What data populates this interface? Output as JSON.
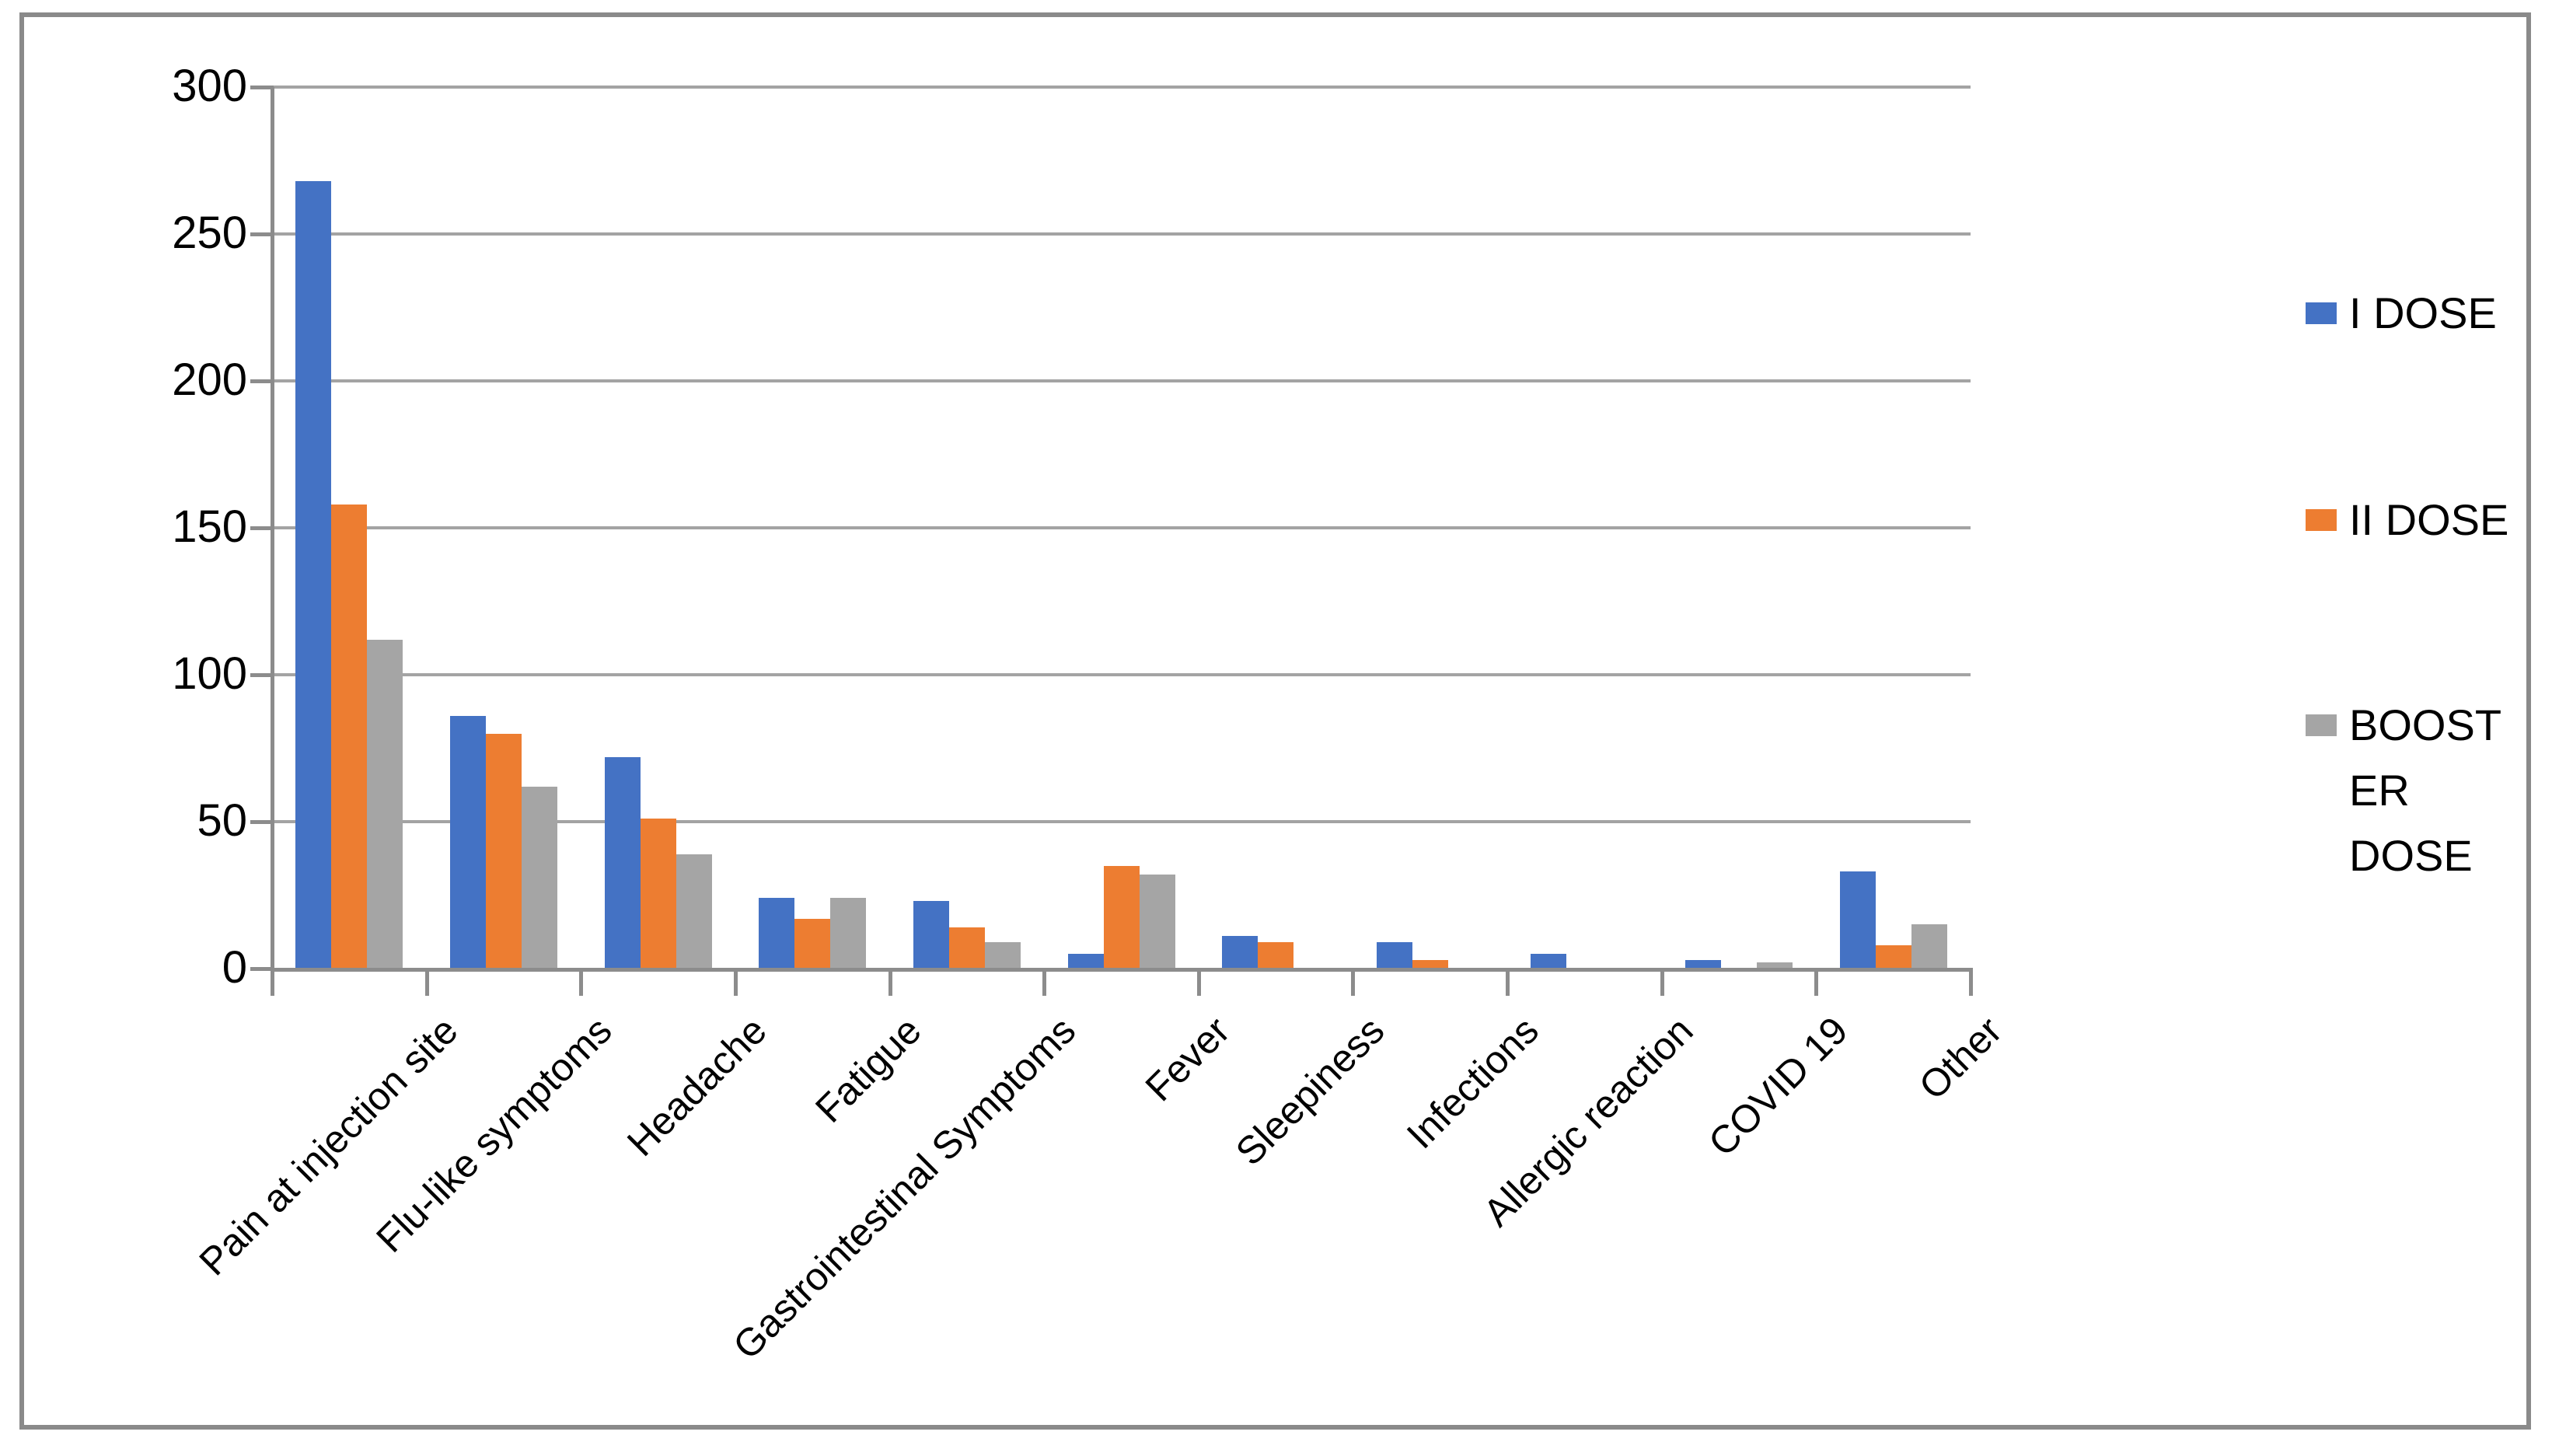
{
  "figure": {
    "background_color": "#FFFFFF",
    "border_color": "#8A8A8A",
    "gridline_color": "#A3A3A3",
    "axis_color": "#8C8C8C",
    "text_color": "#000000"
  },
  "legend": {
    "items": [
      {
        "label": "I DOSE",
        "display": "I DOSE",
        "color": "#4472C4"
      },
      {
        "label": "II DOSE",
        "display": "II DOSE",
        "color": "#ED7D31"
      },
      {
        "label": "BOOSTER DOSE",
        "display": "BOOST\nER\nDOSE",
        "color": "#A5A5A5"
      }
    ]
  },
  "chart_data": {
    "type": "bar",
    "title": "",
    "xlabel": "",
    "ylabel": "",
    "categories": [
      "Pain at injection site",
      "Flu-like symptoms",
      "Headache",
      "Fatigue",
      "Gastrointestinal Symptoms",
      "Fever",
      "Sleepiness",
      "Infections",
      "Allergic reaction",
      "COVID 19",
      "Other"
    ],
    "series": [
      {
        "name": "I DOSE",
        "color": "#4472C4",
        "values": [
          268,
          86,
          72,
          24,
          23,
          5,
          11,
          9,
          5,
          3,
          33
        ]
      },
      {
        "name": "II DOSE",
        "color": "#ED7D31",
        "values": [
          158,
          80,
          51,
          17,
          14,
          35,
          9,
          3,
          0,
          0,
          8
        ]
      },
      {
        "name": "BOOSTER DOSE",
        "color": "#A5A5A5",
        "values": [
          112,
          62,
          39,
          24,
          9,
          32,
          0,
          0,
          0,
          2,
          15
        ]
      }
    ],
    "ylim": [
      0,
      300
    ],
    "ytick_step": 50,
    "yticks": [
      0,
      50,
      100,
      150,
      200,
      250,
      300
    ],
    "grid": true,
    "legend_position": "right",
    "x_labels_rotation_deg": -45
  }
}
